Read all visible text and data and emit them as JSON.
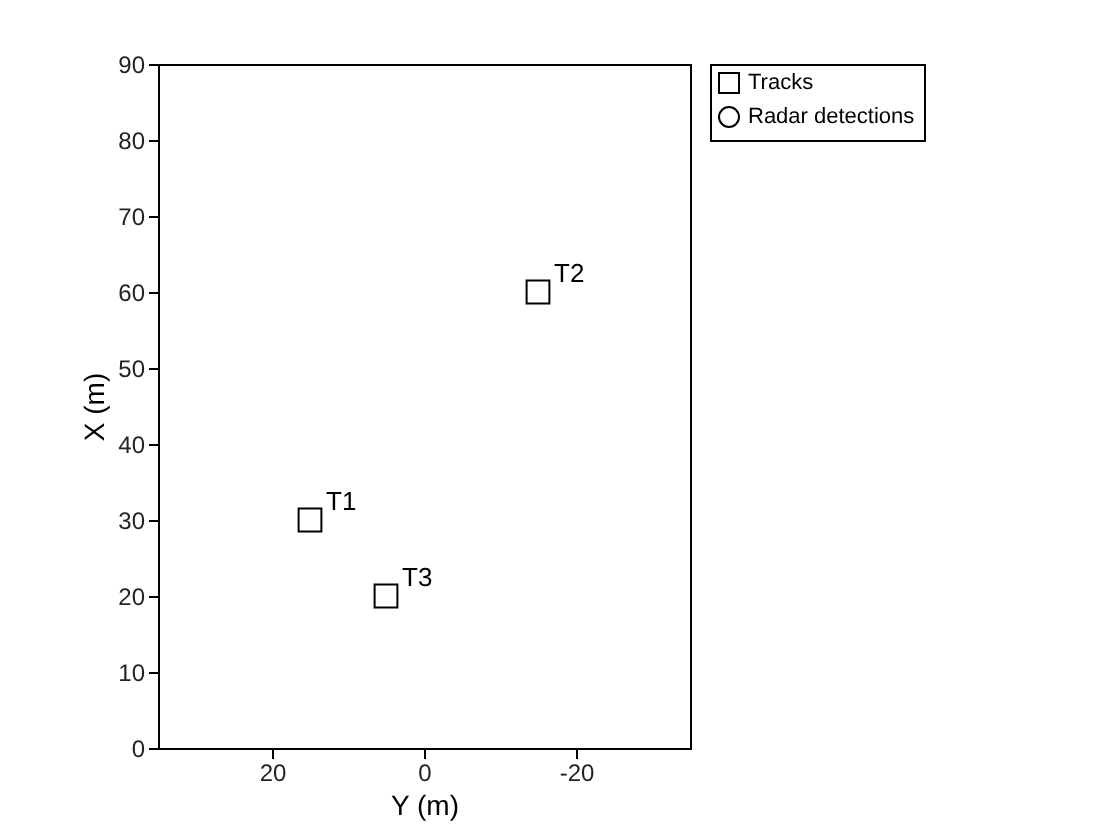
{
  "chart_data": {
    "type": "scatter",
    "xlabel": "Y (m)",
    "ylabel": "X (m)",
    "xlim": [
      35,
      -35
    ],
    "xticks": [
      20,
      0,
      -20
    ],
    "ylim": [
      0,
      90
    ],
    "yticks": [
      0,
      10,
      20,
      30,
      40,
      50,
      60,
      70,
      80,
      90
    ],
    "grid": false,
    "legend": "top right",
    "series": [
      {
        "name": "Tracks",
        "color": "#000000",
        "marker": "square",
        "x": [
          15,
          5,
          -15
        ],
        "values": [
          30,
          20,
          60
        ]
      },
      {
        "name": "Radar detections",
        "color": "#000000",
        "marker": "circle"
      }
    ],
    "annotations": [
      {
        "text": "T1",
        "x": 15,
        "y": 30
      },
      {
        "text": "T3",
        "x": 5,
        "y": 20
      },
      {
        "text": "T2",
        "x": -15,
        "y": 60
      }
    ]
  }
}
